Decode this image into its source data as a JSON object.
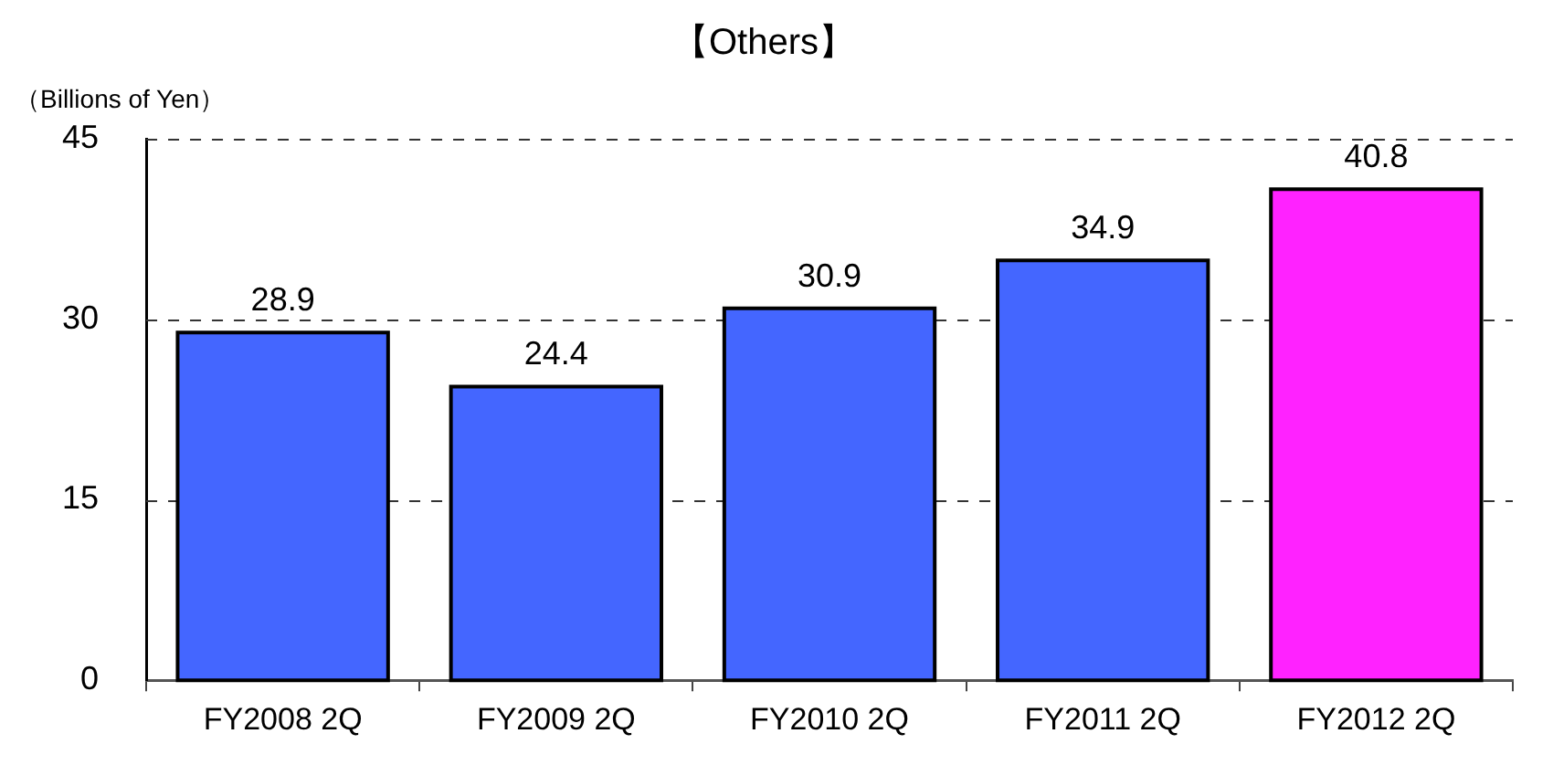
{
  "chart_data": {
    "type": "bar",
    "title": "【Others】",
    "ylabel": "（Billions of Yen）",
    "categories": [
      "FY2008 2Q",
      "FY2009 2Q",
      "FY2010 2Q",
      "FY2011 2Q",
      "FY2012 2Q"
    ],
    "values": [
      28.9,
      24.4,
      30.9,
      34.9,
      40.8
    ],
    "colors": [
      "#4466ff",
      "#4466ff",
      "#4466ff",
      "#4466ff",
      "#ff22ff"
    ],
    "ylim": [
      0,
      45
    ],
    "yticks": [
      0,
      15,
      30,
      45
    ],
    "grid": "y",
    "data_labels": true
  }
}
